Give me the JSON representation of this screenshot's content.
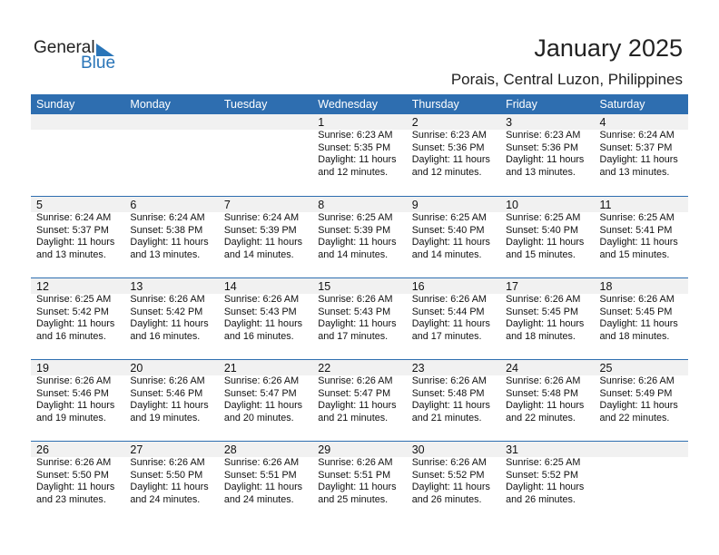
{
  "logo": {
    "text1": "General",
    "text2": "Blue",
    "color": "#2a75b8"
  },
  "title": "January 2025",
  "subtitle": "Porais, Central Luzon, Philippines",
  "days": [
    "Sunday",
    "Monday",
    "Tuesday",
    "Wednesday",
    "Thursday",
    "Friday",
    "Saturday"
  ],
  "weeks": [
    [
      null,
      null,
      null,
      {
        "d": "1",
        "rise": "Sunrise: 6:23 AM",
        "set": "Sunset: 5:35 PM",
        "dl1": "Daylight: 11 hours",
        "dl2": "and 12 minutes."
      },
      {
        "d": "2",
        "rise": "Sunrise: 6:23 AM",
        "set": "Sunset: 5:36 PM",
        "dl1": "Daylight: 11 hours",
        "dl2": "and 12 minutes."
      },
      {
        "d": "3",
        "rise": "Sunrise: 6:23 AM",
        "set": "Sunset: 5:36 PM",
        "dl1": "Daylight: 11 hours",
        "dl2": "and 13 minutes."
      },
      {
        "d": "4",
        "rise": "Sunrise: 6:24 AM",
        "set": "Sunset: 5:37 PM",
        "dl1": "Daylight: 11 hours",
        "dl2": "and 13 minutes."
      }
    ],
    [
      {
        "d": "5",
        "rise": "Sunrise: 6:24 AM",
        "set": "Sunset: 5:37 PM",
        "dl1": "Daylight: 11 hours",
        "dl2": "and 13 minutes."
      },
      {
        "d": "6",
        "rise": "Sunrise: 6:24 AM",
        "set": "Sunset: 5:38 PM",
        "dl1": "Daylight: 11 hours",
        "dl2": "and 13 minutes."
      },
      {
        "d": "7",
        "rise": "Sunrise: 6:24 AM",
        "set": "Sunset: 5:39 PM",
        "dl1": "Daylight: 11 hours",
        "dl2": "and 14 minutes."
      },
      {
        "d": "8",
        "rise": "Sunrise: 6:25 AM",
        "set": "Sunset: 5:39 PM",
        "dl1": "Daylight: 11 hours",
        "dl2": "and 14 minutes."
      },
      {
        "d": "9",
        "rise": "Sunrise: 6:25 AM",
        "set": "Sunset: 5:40 PM",
        "dl1": "Daylight: 11 hours",
        "dl2": "and 14 minutes."
      },
      {
        "d": "10",
        "rise": "Sunrise: 6:25 AM",
        "set": "Sunset: 5:40 PM",
        "dl1": "Daylight: 11 hours",
        "dl2": "and 15 minutes."
      },
      {
        "d": "11",
        "rise": "Sunrise: 6:25 AM",
        "set": "Sunset: 5:41 PM",
        "dl1": "Daylight: 11 hours",
        "dl2": "and 15 minutes."
      }
    ],
    [
      {
        "d": "12",
        "rise": "Sunrise: 6:25 AM",
        "set": "Sunset: 5:42 PM",
        "dl1": "Daylight: 11 hours",
        "dl2": "and 16 minutes."
      },
      {
        "d": "13",
        "rise": "Sunrise: 6:26 AM",
        "set": "Sunset: 5:42 PM",
        "dl1": "Daylight: 11 hours",
        "dl2": "and 16 minutes."
      },
      {
        "d": "14",
        "rise": "Sunrise: 6:26 AM",
        "set": "Sunset: 5:43 PM",
        "dl1": "Daylight: 11 hours",
        "dl2": "and 16 minutes."
      },
      {
        "d": "15",
        "rise": "Sunrise: 6:26 AM",
        "set": "Sunset: 5:43 PM",
        "dl1": "Daylight: 11 hours",
        "dl2": "and 17 minutes."
      },
      {
        "d": "16",
        "rise": "Sunrise: 6:26 AM",
        "set": "Sunset: 5:44 PM",
        "dl1": "Daylight: 11 hours",
        "dl2": "and 17 minutes."
      },
      {
        "d": "17",
        "rise": "Sunrise: 6:26 AM",
        "set": "Sunset: 5:45 PM",
        "dl1": "Daylight: 11 hours",
        "dl2": "and 18 minutes."
      },
      {
        "d": "18",
        "rise": "Sunrise: 6:26 AM",
        "set": "Sunset: 5:45 PM",
        "dl1": "Daylight: 11 hours",
        "dl2": "and 18 minutes."
      }
    ],
    [
      {
        "d": "19",
        "rise": "Sunrise: 6:26 AM",
        "set": "Sunset: 5:46 PM",
        "dl1": "Daylight: 11 hours",
        "dl2": "and 19 minutes."
      },
      {
        "d": "20",
        "rise": "Sunrise: 6:26 AM",
        "set": "Sunset: 5:46 PM",
        "dl1": "Daylight: 11 hours",
        "dl2": "and 19 minutes."
      },
      {
        "d": "21",
        "rise": "Sunrise: 6:26 AM",
        "set": "Sunset: 5:47 PM",
        "dl1": "Daylight: 11 hours",
        "dl2": "and 20 minutes."
      },
      {
        "d": "22",
        "rise": "Sunrise: 6:26 AM",
        "set": "Sunset: 5:47 PM",
        "dl1": "Daylight: 11 hours",
        "dl2": "and 21 minutes."
      },
      {
        "d": "23",
        "rise": "Sunrise: 6:26 AM",
        "set": "Sunset: 5:48 PM",
        "dl1": "Daylight: 11 hours",
        "dl2": "and 21 minutes."
      },
      {
        "d": "24",
        "rise": "Sunrise: 6:26 AM",
        "set": "Sunset: 5:48 PM",
        "dl1": "Daylight: 11 hours",
        "dl2": "and 22 minutes."
      },
      {
        "d": "25",
        "rise": "Sunrise: 6:26 AM",
        "set": "Sunset: 5:49 PM",
        "dl1": "Daylight: 11 hours",
        "dl2": "and 22 minutes."
      }
    ],
    [
      {
        "d": "26",
        "rise": "Sunrise: 6:26 AM",
        "set": "Sunset: 5:50 PM",
        "dl1": "Daylight: 11 hours",
        "dl2": "and 23 minutes."
      },
      {
        "d": "27",
        "rise": "Sunrise: 6:26 AM",
        "set": "Sunset: 5:50 PM",
        "dl1": "Daylight: 11 hours",
        "dl2": "and 24 minutes."
      },
      {
        "d": "28",
        "rise": "Sunrise: 6:26 AM",
        "set": "Sunset: 5:51 PM",
        "dl1": "Daylight: 11 hours",
        "dl2": "and 24 minutes."
      },
      {
        "d": "29",
        "rise": "Sunrise: 6:26 AM",
        "set": "Sunset: 5:51 PM",
        "dl1": "Daylight: 11 hours",
        "dl2": "and 25 minutes."
      },
      {
        "d": "30",
        "rise": "Sunrise: 6:26 AM",
        "set": "Sunset: 5:52 PM",
        "dl1": "Daylight: 11 hours",
        "dl2": "and 26 minutes."
      },
      {
        "d": "31",
        "rise": "Sunrise: 6:25 AM",
        "set": "Sunset: 5:52 PM",
        "dl1": "Daylight: 11 hours",
        "dl2": "and 26 minutes."
      },
      null
    ]
  ]
}
